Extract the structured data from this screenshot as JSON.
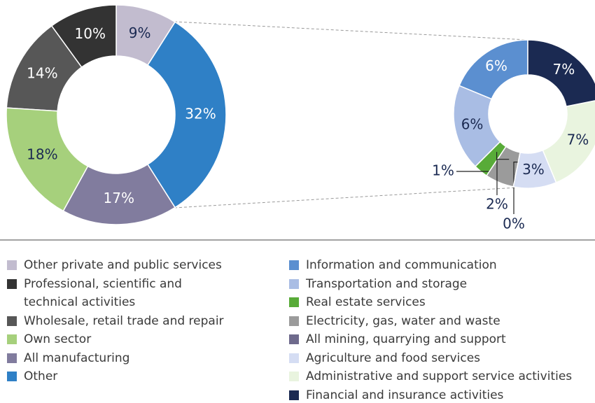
{
  "chart_data": [
    {
      "type": "donut",
      "categories": [
        "Other private and public services",
        "Professional, scientific and technical activities",
        "Wholesale, retail trade and repair",
        "Own sector",
        "All manufacturing",
        "Other"
      ],
      "values": [
        9,
        10,
        14,
        18,
        17,
        32
      ],
      "value_labels": [
        "9%",
        "10%",
        "14%",
        "18%",
        "17%",
        "32%"
      ],
      "colors": [
        "#c2bccf",
        "#333333",
        "#575757",
        "#a6d07c",
        "#817c9e",
        "#2f80c6"
      ]
    },
    {
      "type": "donut",
      "categories": [
        "Information and communication",
        "Transportation and storage",
        "Real estate services",
        "Electricity, gas, water and waste",
        "All mining, quarrying and support",
        "Agriculture and food services",
        "Administrative and support service activities",
        "Financial and insurance activities"
      ],
      "values": [
        6,
        6,
        1,
        2,
        0,
        3,
        7,
        7
      ],
      "value_labels": [
        "6%",
        "6%",
        "1%",
        "2%",
        "0%",
        "3%",
        "7%",
        "7%"
      ],
      "colors": [
        "#5b8fd0",
        "#a9bde4",
        "#58ab38",
        "#9b9b9b",
        "#6e6a8c",
        "#d5ddf3",
        "#e9f4df",
        "#1b2a52"
      ]
    }
  ]
}
